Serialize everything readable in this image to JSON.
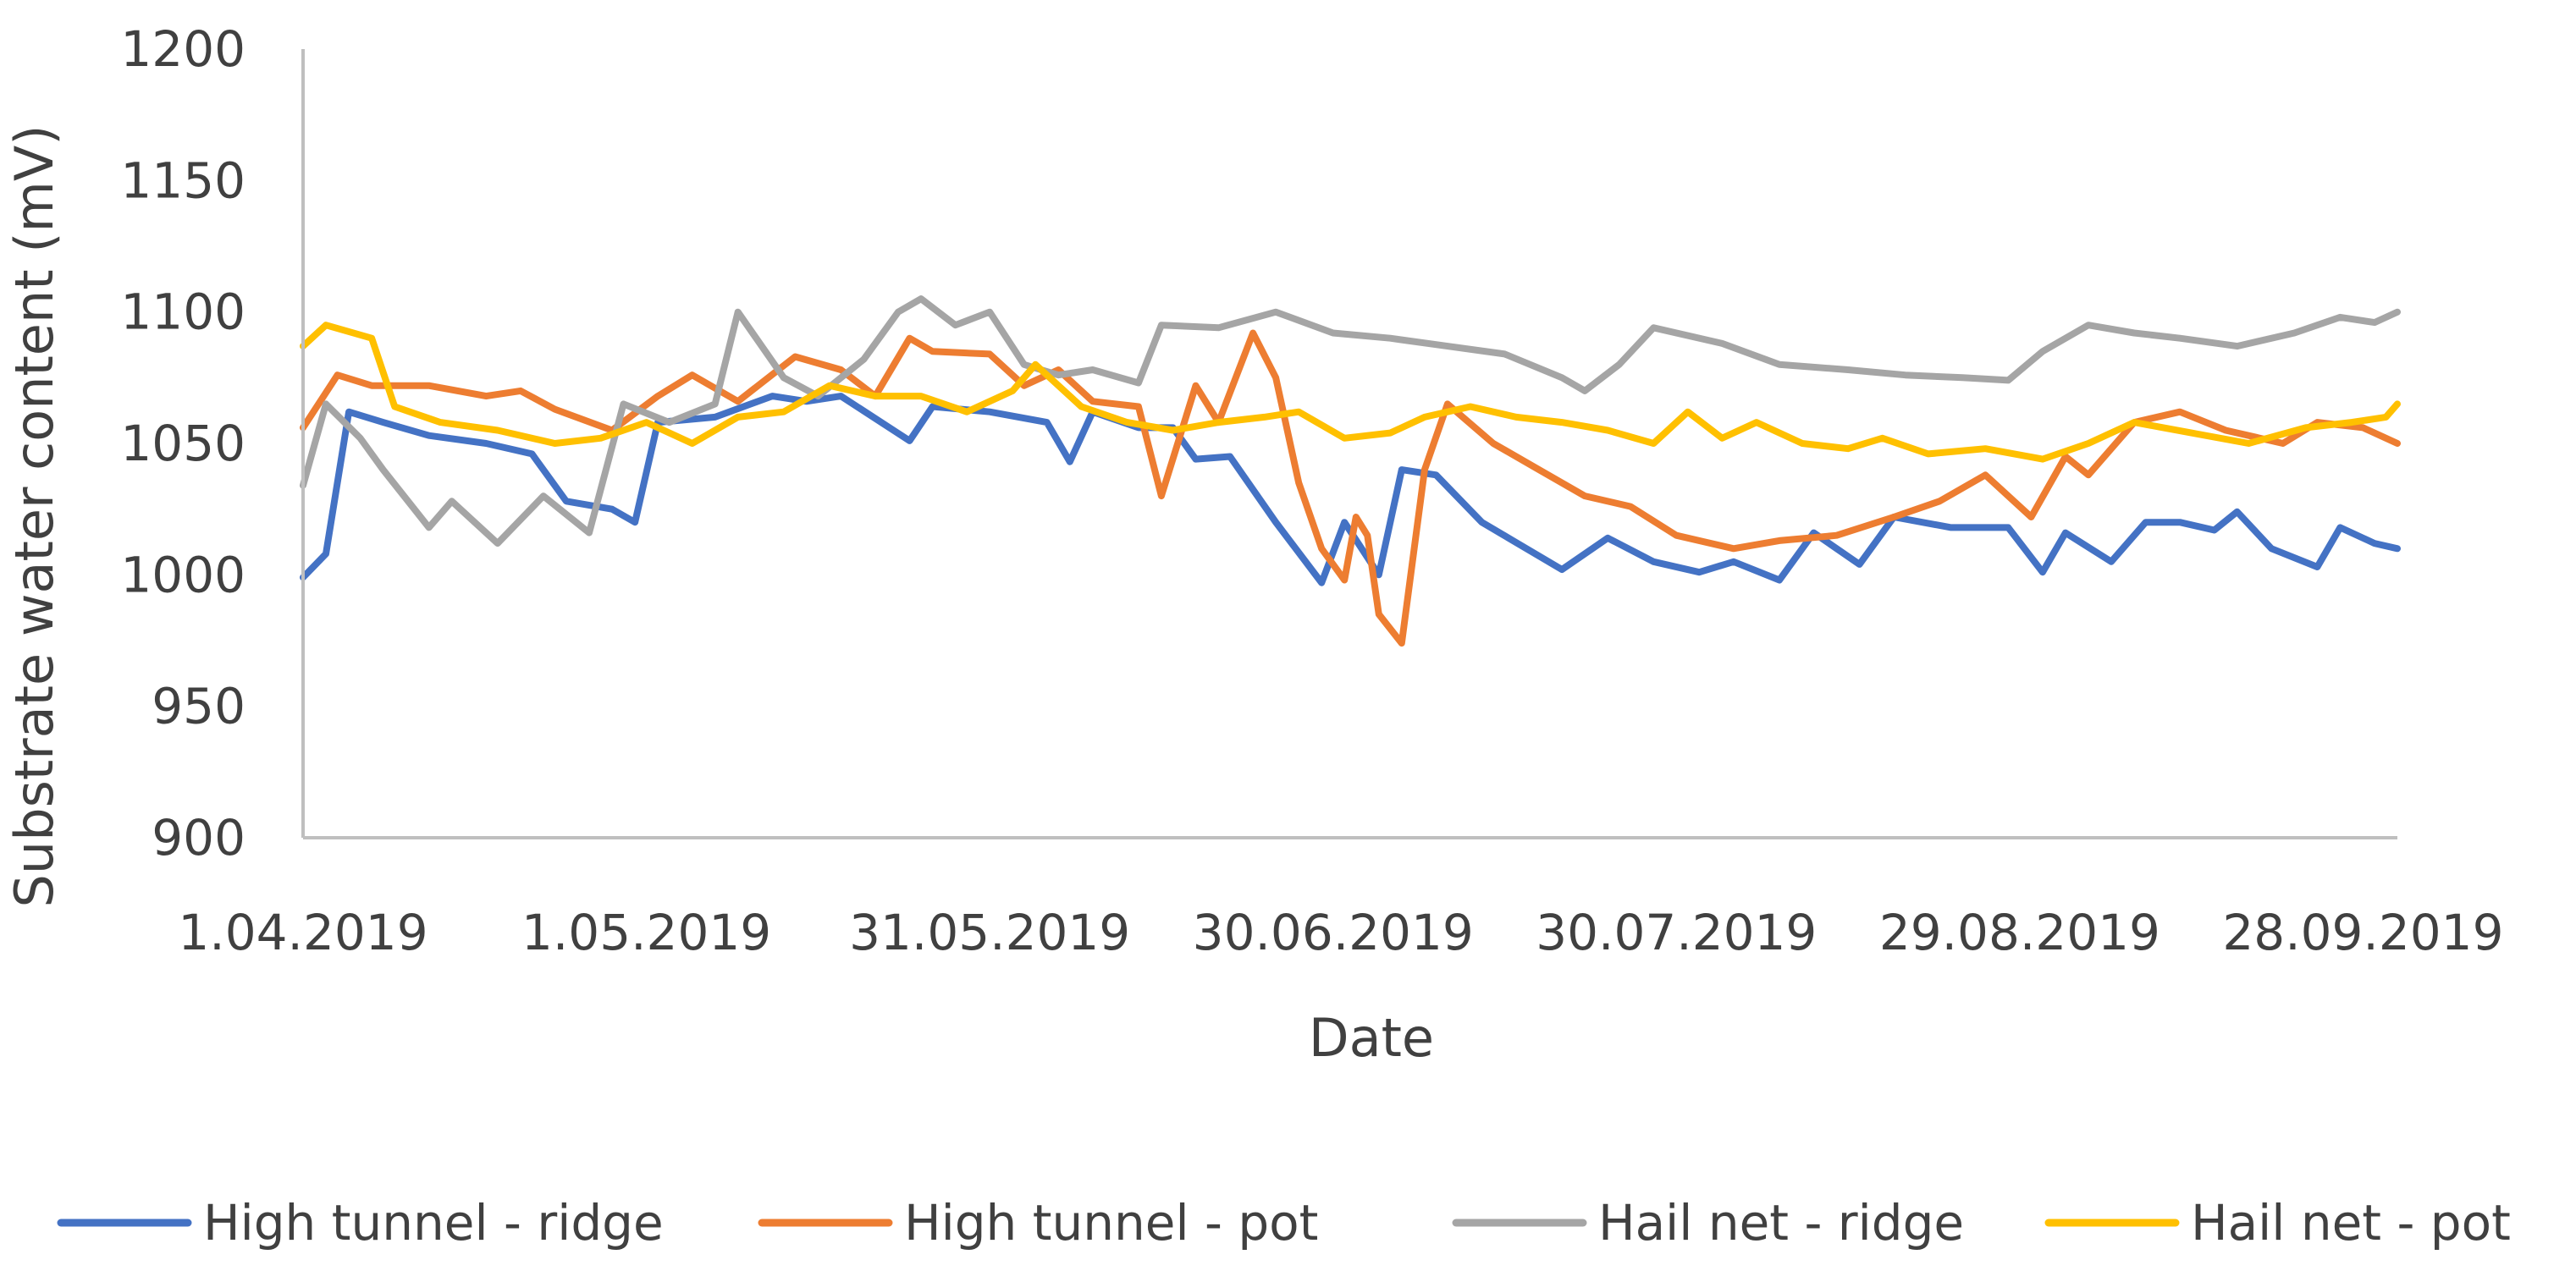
{
  "chart_data": {
    "type": "line",
    "title": "",
    "xlabel": "Date",
    "ylabel": "Substrate water content (mV)",
    "x_axis": {
      "type": "date",
      "min": "2019-04-01",
      "max": "2019-10-01",
      "tick_dates": [
        "2019-04-01",
        "2019-05-01",
        "2019-05-31",
        "2019-06-30",
        "2019-07-30",
        "2019-08-29",
        "2019-09-28"
      ],
      "tick_labels": [
        "1.04.2019",
        "1.05.2019",
        "31.05.2019",
        "30.06.2019",
        "30.07.2019",
        "29.08.2019",
        "28.09.2019"
      ]
    },
    "y_axis": {
      "min": 900,
      "max": 1200,
      "ticks": [
        900,
        950,
        1000,
        1050,
        1100,
        1150,
        1200
      ],
      "tick_labels": [
        "900",
        "950",
        "1000",
        "1050",
        "1100",
        "1150",
        "1200"
      ]
    },
    "grid": false,
    "legend_position": "bottom",
    "series": [
      {
        "name": "High tunnel - ridge",
        "color": "#4472c4",
        "points": [
          [
            "2019-04-01",
            999
          ],
          [
            "2019-04-03",
            1008
          ],
          [
            "2019-04-05",
            1062
          ],
          [
            "2019-04-08",
            1058
          ],
          [
            "2019-04-12",
            1053
          ],
          [
            "2019-04-17",
            1050
          ],
          [
            "2019-04-21",
            1046
          ],
          [
            "2019-04-24",
            1028
          ],
          [
            "2019-04-28",
            1025
          ],
          [
            "2019-04-30",
            1020
          ],
          [
            "2019-05-02",
            1058
          ],
          [
            "2019-05-07",
            1060
          ],
          [
            "2019-05-12",
            1068
          ],
          [
            "2019-05-15",
            1066
          ],
          [
            "2019-05-18",
            1068
          ],
          [
            "2019-05-24",
            1051
          ],
          [
            "2019-05-26",
            1064
          ],
          [
            "2019-05-31",
            1062
          ],
          [
            "2019-06-05",
            1058
          ],
          [
            "2019-06-07",
            1043
          ],
          [
            "2019-06-09",
            1062
          ],
          [
            "2019-06-13",
            1056
          ],
          [
            "2019-06-16",
            1056
          ],
          [
            "2019-06-18",
            1044
          ],
          [
            "2019-06-21",
            1045
          ],
          [
            "2019-06-25",
            1020
          ],
          [
            "2019-06-29",
            997
          ],
          [
            "2019-07-01",
            1020
          ],
          [
            "2019-07-04",
            1000
          ],
          [
            "2019-07-06",
            1040
          ],
          [
            "2019-07-09",
            1038
          ],
          [
            "2019-07-13",
            1020
          ],
          [
            "2019-07-20",
            1002
          ],
          [
            "2019-07-24",
            1014
          ],
          [
            "2019-07-28",
            1005
          ],
          [
            "2019-08-01",
            1001
          ],
          [
            "2019-08-04",
            1005
          ],
          [
            "2019-08-08",
            998
          ],
          [
            "2019-08-11",
            1016
          ],
          [
            "2019-08-15",
            1004
          ],
          [
            "2019-08-18",
            1022
          ],
          [
            "2019-08-23",
            1018
          ],
          [
            "2019-08-28",
            1018
          ],
          [
            "2019-08-31",
            1001
          ],
          [
            "2019-09-02",
            1016
          ],
          [
            "2019-09-06",
            1005
          ],
          [
            "2019-09-09",
            1020
          ],
          [
            "2019-09-12",
            1020
          ],
          [
            "2019-09-15",
            1017
          ],
          [
            "2019-09-17",
            1024
          ],
          [
            "2019-09-20",
            1010
          ],
          [
            "2019-09-24",
            1003
          ],
          [
            "2019-09-26",
            1018
          ],
          [
            "2019-09-29",
            1012
          ],
          [
            "2019-10-01",
            1010
          ]
        ]
      },
      {
        "name": "High tunnel - pot",
        "color": "#ed7d31",
        "points": [
          [
            "2019-04-01",
            1056
          ],
          [
            "2019-04-04",
            1076
          ],
          [
            "2019-04-07",
            1072
          ],
          [
            "2019-04-12",
            1072
          ],
          [
            "2019-04-17",
            1068
          ],
          [
            "2019-04-20",
            1070
          ],
          [
            "2019-04-23",
            1063
          ],
          [
            "2019-04-28",
            1055
          ],
          [
            "2019-05-02",
            1068
          ],
          [
            "2019-05-05",
            1076
          ],
          [
            "2019-05-09",
            1066
          ],
          [
            "2019-05-14",
            1083
          ],
          [
            "2019-05-18",
            1078
          ],
          [
            "2019-05-21",
            1068
          ],
          [
            "2019-05-24",
            1090
          ],
          [
            "2019-05-26",
            1085
          ],
          [
            "2019-05-31",
            1084
          ],
          [
            "2019-06-03",
            1072
          ],
          [
            "2019-06-06",
            1078
          ],
          [
            "2019-06-09",
            1066
          ],
          [
            "2019-06-13",
            1064
          ],
          [
            "2019-06-15",
            1030
          ],
          [
            "2019-06-18",
            1072
          ],
          [
            "2019-06-20",
            1058
          ],
          [
            "2019-06-23",
            1092
          ],
          [
            "2019-06-25",
            1075
          ],
          [
            "2019-06-27",
            1035
          ],
          [
            "2019-06-29",
            1010
          ],
          [
            "2019-07-01",
            998
          ],
          [
            "2019-07-02",
            1022
          ],
          [
            "2019-07-03",
            1015
          ],
          [
            "2019-07-04",
            985
          ],
          [
            "2019-07-06",
            974
          ],
          [
            "2019-07-08",
            1040
          ],
          [
            "2019-07-10",
            1065
          ],
          [
            "2019-07-14",
            1050
          ],
          [
            "2019-07-18",
            1040
          ],
          [
            "2019-07-22",
            1030
          ],
          [
            "2019-07-26",
            1026
          ],
          [
            "2019-07-30",
            1015
          ],
          [
            "2019-08-04",
            1010
          ],
          [
            "2019-08-08",
            1013
          ],
          [
            "2019-08-13",
            1015
          ],
          [
            "2019-08-18",
            1022
          ],
          [
            "2019-08-22",
            1028
          ],
          [
            "2019-08-26",
            1038
          ],
          [
            "2019-08-30",
            1022
          ],
          [
            "2019-09-02",
            1045
          ],
          [
            "2019-09-04",
            1038
          ],
          [
            "2019-09-08",
            1058
          ],
          [
            "2019-09-12",
            1062
          ],
          [
            "2019-09-16",
            1055
          ],
          [
            "2019-09-21",
            1050
          ],
          [
            "2019-09-24",
            1058
          ],
          [
            "2019-09-28",
            1056
          ],
          [
            "2019-10-01",
            1050
          ]
        ]
      },
      {
        "name": "Hail net - ridge",
        "color": "#a5a5a5",
        "points": [
          [
            "2019-04-01",
            1034
          ],
          [
            "2019-04-03",
            1065
          ],
          [
            "2019-04-06",
            1052
          ],
          [
            "2019-04-08",
            1040
          ],
          [
            "2019-04-12",
            1018
          ],
          [
            "2019-04-14",
            1028
          ],
          [
            "2019-04-18",
            1012
          ],
          [
            "2019-04-22",
            1030
          ],
          [
            "2019-04-26",
            1016
          ],
          [
            "2019-04-29",
            1065
          ],
          [
            "2019-05-03",
            1058
          ],
          [
            "2019-05-07",
            1065
          ],
          [
            "2019-05-09",
            1100
          ],
          [
            "2019-05-13",
            1075
          ],
          [
            "2019-05-16",
            1068
          ],
          [
            "2019-05-20",
            1082
          ],
          [
            "2019-05-23",
            1100
          ],
          [
            "2019-05-25",
            1105
          ],
          [
            "2019-05-28",
            1095
          ],
          [
            "2019-05-31",
            1100
          ],
          [
            "2019-06-03",
            1080
          ],
          [
            "2019-06-06",
            1076
          ],
          [
            "2019-06-09",
            1078
          ],
          [
            "2019-06-13",
            1073
          ],
          [
            "2019-06-15",
            1095
          ],
          [
            "2019-06-20",
            1094
          ],
          [
            "2019-06-25",
            1100
          ],
          [
            "2019-06-30",
            1092
          ],
          [
            "2019-07-05",
            1090
          ],
          [
            "2019-07-10",
            1087
          ],
          [
            "2019-07-15",
            1084
          ],
          [
            "2019-07-20",
            1075
          ],
          [
            "2019-07-22",
            1070
          ],
          [
            "2019-07-25",
            1080
          ],
          [
            "2019-07-28",
            1094
          ],
          [
            "2019-08-03",
            1088
          ],
          [
            "2019-08-08",
            1080
          ],
          [
            "2019-08-14",
            1078
          ],
          [
            "2019-08-19",
            1076
          ],
          [
            "2019-08-24",
            1075
          ],
          [
            "2019-08-28",
            1074
          ],
          [
            "2019-08-31",
            1085
          ],
          [
            "2019-09-04",
            1095
          ],
          [
            "2019-09-08",
            1092
          ],
          [
            "2019-09-12",
            1090
          ],
          [
            "2019-09-17",
            1087
          ],
          [
            "2019-09-22",
            1092
          ],
          [
            "2019-09-26",
            1098
          ],
          [
            "2019-09-29",
            1096
          ],
          [
            "2019-10-01",
            1100
          ]
        ]
      },
      {
        "name": "Hail net - pot",
        "color": "#ffc000",
        "points": [
          [
            "2019-04-01",
            1087
          ],
          [
            "2019-04-03",
            1095
          ],
          [
            "2019-04-07",
            1090
          ],
          [
            "2019-04-09",
            1064
          ],
          [
            "2019-04-13",
            1058
          ],
          [
            "2019-04-18",
            1055
          ],
          [
            "2019-04-23",
            1050
          ],
          [
            "2019-04-27",
            1052
          ],
          [
            "2019-05-01",
            1058
          ],
          [
            "2019-05-05",
            1050
          ],
          [
            "2019-05-09",
            1060
          ],
          [
            "2019-05-13",
            1062
          ],
          [
            "2019-05-17",
            1072
          ],
          [
            "2019-05-21",
            1068
          ],
          [
            "2019-05-25",
            1068
          ],
          [
            "2019-05-29",
            1062
          ],
          [
            "2019-06-02",
            1070
          ],
          [
            "2019-06-04",
            1080
          ],
          [
            "2019-06-08",
            1064
          ],
          [
            "2019-06-12",
            1058
          ],
          [
            "2019-06-16",
            1055
          ],
          [
            "2019-06-20",
            1058
          ],
          [
            "2019-06-24",
            1060
          ],
          [
            "2019-06-27",
            1062
          ],
          [
            "2019-07-01",
            1052
          ],
          [
            "2019-07-05",
            1054
          ],
          [
            "2019-07-08",
            1060
          ],
          [
            "2019-07-12",
            1064
          ],
          [
            "2019-07-16",
            1060
          ],
          [
            "2019-07-20",
            1058
          ],
          [
            "2019-07-24",
            1055
          ],
          [
            "2019-07-28",
            1050
          ],
          [
            "2019-07-31",
            1062
          ],
          [
            "2019-08-03",
            1052
          ],
          [
            "2019-08-06",
            1058
          ],
          [
            "2019-08-10",
            1050
          ],
          [
            "2019-08-14",
            1048
          ],
          [
            "2019-08-17",
            1052
          ],
          [
            "2019-08-21",
            1046
          ],
          [
            "2019-08-26",
            1048
          ],
          [
            "2019-08-31",
            1044
          ],
          [
            "2019-09-04",
            1050
          ],
          [
            "2019-09-08",
            1058
          ],
          [
            "2019-09-13",
            1054
          ],
          [
            "2019-09-18",
            1050
          ],
          [
            "2019-09-23",
            1056
          ],
          [
            "2019-09-27",
            1058
          ],
          [
            "2019-09-30",
            1060
          ],
          [
            "2019-10-01",
            1065
          ]
        ]
      }
    ]
  }
}
